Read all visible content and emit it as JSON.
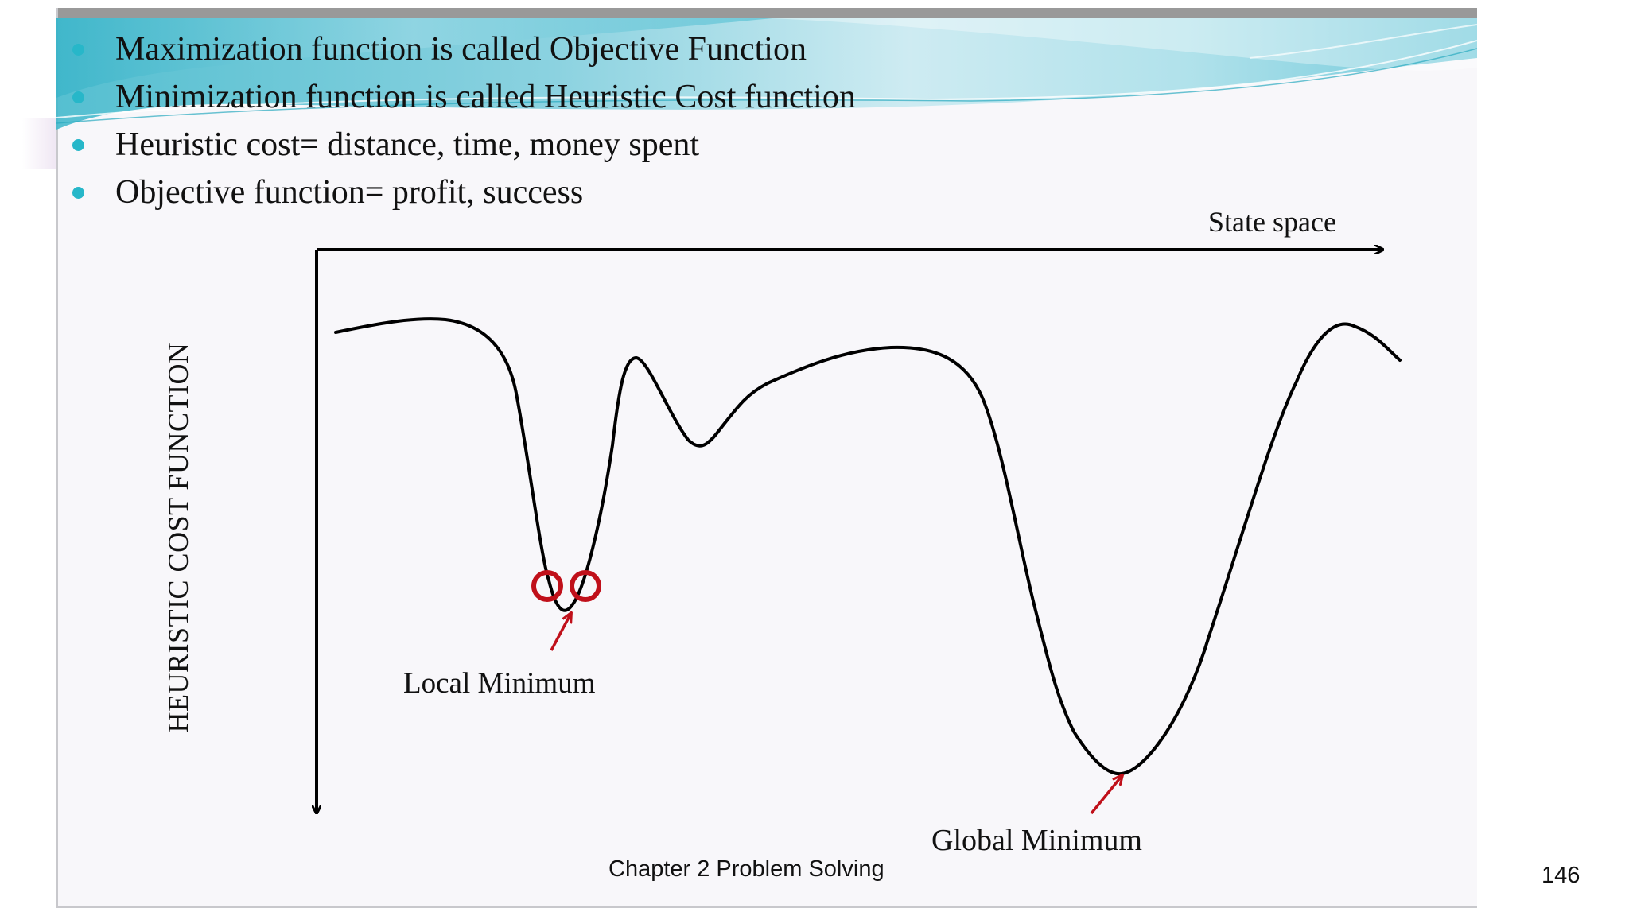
{
  "slide": {
    "bullets": [
      "Maximization function is called Objective Function",
      "Minimization function is called Heuristic Cost function",
      "Heuristic cost= distance, time, money spent",
      "Objective function= profit, success"
    ],
    "footer": "Chapter 2 Problem Solving",
    "page_number": "146",
    "accent_color": "#27b7c9"
  },
  "diagram": {
    "x_axis_label": "State space",
    "y_axis_label": "HEURISTIC COST  FUNCTION",
    "local_minimum_label": "Local Minimum",
    "global_minimum_label": "Global Minimum",
    "curve_color": "#000000",
    "marker_color": "#c0101a"
  }
}
